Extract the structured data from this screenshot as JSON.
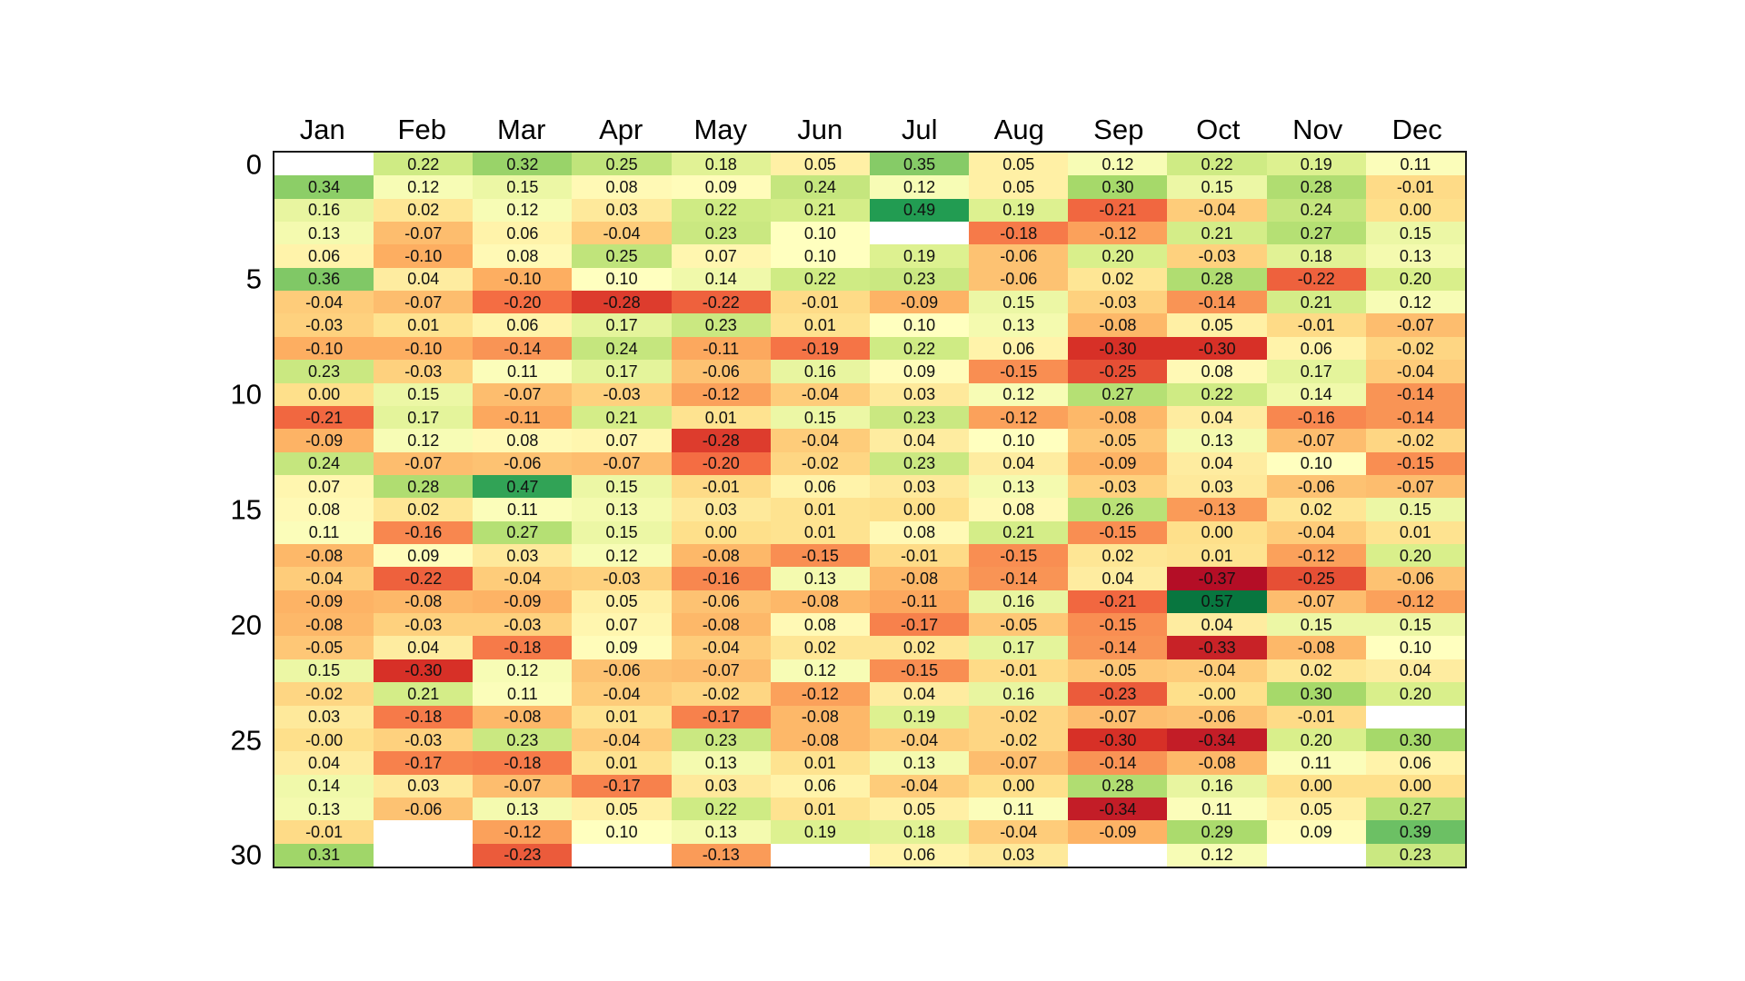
{
  "page": {
    "background_color": "#ffffff"
  },
  "chart_data": {
    "type": "heatmap",
    "title": "",
    "xlabel": "",
    "ylabel": "",
    "x_labels": [
      "Jan",
      "Feb",
      "Mar",
      "Apr",
      "May",
      "Jun",
      "Jul",
      "Aug",
      "Sep",
      "Oct",
      "Nov",
      "Dec"
    ],
    "y_tick_labels": [
      "0",
      "5",
      "10",
      "15",
      "20",
      "25",
      "30"
    ],
    "y_tick_positions": [
      0,
      5,
      10,
      15,
      20,
      25,
      30
    ],
    "n_rows": 31,
    "n_cols": 12,
    "grid": "off",
    "legend": "none",
    "colormap": {
      "name": "RdYlGn",
      "vmin": -0.4,
      "vmax": 0.6,
      "anchors": [
        "#a50026",
        "#d73027",
        "#f46d43",
        "#fdae61",
        "#fee08b",
        "#ffffbf",
        "#d9ef8b",
        "#a6d96a",
        "#66bd63",
        "#1a9850",
        "#006837"
      ]
    },
    "missing_color": "#ffffff",
    "border_color": "#1b1b1b",
    "value_text_color": "#111111",
    "axis_text_color": "#000000",
    "rows": [
      [
        null,
        "0.22",
        "0.32",
        "0.25",
        "0.18",
        "0.05",
        "0.35",
        "0.05",
        "0.12",
        "0.22",
        "0.19",
        "0.11"
      ],
      [
        "0.34",
        "0.12",
        "0.15",
        "0.08",
        "0.09",
        "0.24",
        "0.12",
        "0.05",
        "0.30",
        "0.15",
        "0.28",
        "-0.01"
      ],
      [
        "0.16",
        "0.02",
        "0.12",
        "0.03",
        "0.22",
        "0.21",
        "0.49",
        "0.19",
        "-0.21",
        "-0.04",
        "0.24",
        "0.00"
      ],
      [
        "0.13",
        "-0.07",
        "0.06",
        "-0.04",
        "0.23",
        "0.10",
        null,
        "-0.18",
        "-0.12",
        "0.21",
        "0.27",
        "0.15"
      ],
      [
        "0.06",
        "-0.10",
        "0.08",
        "0.25",
        "0.07",
        "0.10",
        "0.19",
        "-0.06",
        "0.20",
        "-0.03",
        "0.18",
        "0.13"
      ],
      [
        "0.36",
        "0.04",
        "-0.10",
        "0.10",
        "0.14",
        "0.22",
        "0.23",
        "-0.06",
        "0.02",
        "0.28",
        "-0.22",
        "0.20"
      ],
      [
        "-0.04",
        "-0.07",
        "-0.20",
        "-0.28",
        "-0.22",
        "-0.01",
        "-0.09",
        "0.15",
        "-0.03",
        "-0.14",
        "0.21",
        "0.12"
      ],
      [
        "-0.03",
        "0.01",
        "0.06",
        "0.17",
        "0.23",
        "0.01",
        "0.10",
        "0.13",
        "-0.08",
        "0.05",
        "-0.01",
        "-0.07"
      ],
      [
        "-0.10",
        "-0.10",
        "-0.14",
        "0.24",
        "-0.11",
        "-0.19",
        "0.22",
        "0.06",
        "-0.30",
        "-0.30",
        "0.06",
        "-0.02"
      ],
      [
        "0.23",
        "-0.03",
        "0.11",
        "0.17",
        "-0.06",
        "0.16",
        "0.09",
        "-0.15",
        "-0.25",
        "0.08",
        "0.17",
        "-0.04"
      ],
      [
        "0.00",
        "0.15",
        "-0.07",
        "-0.03",
        "-0.12",
        "-0.04",
        "0.03",
        "0.12",
        "0.27",
        "0.22",
        "0.14",
        "-0.14"
      ],
      [
        "-0.21",
        "0.17",
        "-0.11",
        "0.21",
        "0.01",
        "0.15",
        "0.23",
        "-0.12",
        "-0.08",
        "0.04",
        "-0.16",
        "-0.14"
      ],
      [
        "-0.09",
        "0.12",
        "0.08",
        "0.07",
        "-0.28",
        "-0.04",
        "0.04",
        "0.10",
        "-0.05",
        "0.13",
        "-0.07",
        "-0.02"
      ],
      [
        "0.24",
        "-0.07",
        "-0.06",
        "-0.07",
        "-0.20",
        "-0.02",
        "0.23",
        "0.04",
        "-0.09",
        "0.04",
        "0.10",
        "-0.15"
      ],
      [
        "0.07",
        "0.28",
        "0.47",
        "0.15",
        "-0.01",
        "0.06",
        "0.03",
        "0.13",
        "-0.03",
        "0.03",
        "-0.06",
        "-0.07"
      ],
      [
        "0.08",
        "0.02",
        "0.11",
        "0.13",
        "0.03",
        "0.01",
        "0.00",
        "0.08",
        "0.26",
        "-0.13",
        "0.02",
        "0.15"
      ],
      [
        "0.11",
        "-0.16",
        "0.27",
        "0.15",
        "0.00",
        "0.01",
        "0.08",
        "0.21",
        "-0.15",
        "0.00",
        "-0.04",
        "0.01"
      ],
      [
        "-0.08",
        "0.09",
        "0.03",
        "0.12",
        "-0.08",
        "-0.15",
        "-0.01",
        "-0.15",
        "0.02",
        "0.01",
        "-0.12",
        "0.20"
      ],
      [
        "-0.04",
        "-0.22",
        "-0.04",
        "-0.03",
        "-0.16",
        "0.13",
        "-0.08",
        "-0.14",
        "0.04",
        "-0.37",
        "-0.25",
        "-0.06"
      ],
      [
        "-0.09",
        "-0.08",
        "-0.09",
        "0.05",
        "-0.06",
        "-0.08",
        "-0.11",
        "0.16",
        "-0.21",
        "0.57",
        "-0.07",
        "-0.12"
      ],
      [
        "-0.08",
        "-0.03",
        "-0.03",
        "0.07",
        "-0.08",
        "0.08",
        "-0.17",
        "-0.05",
        "-0.15",
        "0.04",
        "0.15",
        "0.15"
      ],
      [
        "-0.05",
        "0.04",
        "-0.18",
        "0.09",
        "-0.04",
        "0.02",
        "0.02",
        "0.17",
        "-0.14",
        "-0.33",
        "-0.08",
        "0.10"
      ],
      [
        "0.15",
        "-0.30",
        "0.12",
        "-0.06",
        "-0.07",
        "0.12",
        "-0.15",
        "-0.01",
        "-0.05",
        "-0.04",
        "0.02",
        "0.04"
      ],
      [
        "-0.02",
        "0.21",
        "0.11",
        "-0.04",
        "-0.02",
        "-0.12",
        "0.04",
        "0.16",
        "-0.23",
        "-0.00",
        "0.30",
        "0.20"
      ],
      [
        "0.03",
        "-0.18",
        "-0.08",
        "0.01",
        "-0.17",
        "-0.08",
        "0.19",
        "-0.02",
        "-0.07",
        "-0.06",
        "-0.01",
        null
      ],
      [
        "-0.00",
        "-0.03",
        "0.23",
        "-0.04",
        "0.23",
        "-0.08",
        "-0.04",
        "-0.02",
        "-0.30",
        "-0.34",
        "0.20",
        "0.30"
      ],
      [
        "0.04",
        "-0.17",
        "-0.18",
        "0.01",
        "0.13",
        "0.01",
        "0.13",
        "-0.07",
        "-0.14",
        "-0.08",
        "0.11",
        "0.06"
      ],
      [
        "0.14",
        "0.03",
        "-0.07",
        "-0.17",
        "0.03",
        "0.06",
        "-0.04",
        "0.00",
        "0.28",
        "0.16",
        "0.00",
        "0.00"
      ],
      [
        "0.13",
        "-0.06",
        "0.13",
        "0.05",
        "0.22",
        "0.01",
        "0.05",
        "0.11",
        "-0.34",
        "0.11",
        "0.05",
        "0.27"
      ],
      [
        "-0.01",
        null,
        "-0.12",
        "0.10",
        "0.13",
        "0.19",
        "0.18",
        "-0.04",
        "-0.09",
        "0.29",
        "0.09",
        "0.39"
      ],
      [
        "0.31",
        null,
        "-0.23",
        null,
        "-0.13",
        null,
        "0.06",
        "0.03",
        null,
        "0.12",
        null,
        "0.23"
      ]
    ]
  }
}
